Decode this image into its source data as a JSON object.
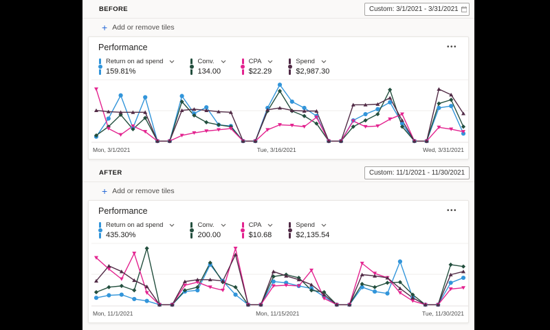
{
  "colors": {
    "roas_blue": "#3295da",
    "conv_green": "#234f3e",
    "cpa_pink": "#e3238f",
    "spend_plum": "#512b46",
    "accent_link": "#2a6bd7"
  },
  "sections": [
    {
      "label": "BEFORE",
      "date_range": "Custom: 3/1/2021 - 3/31/2021",
      "add_tiles_label": "Add or remove tiles",
      "card": {
        "title": "Performance",
        "more_label": "•••",
        "metrics": [
          {
            "label": "Return on ad spend",
            "value": "159.81%",
            "color": "#3295da"
          },
          {
            "label": "Conv.",
            "value": "134.00",
            "color": "#234f3e"
          },
          {
            "label": "CPA",
            "value": "$22.29",
            "color": "#e3238f"
          },
          {
            "label": "Spend",
            "value": "$2,987.30",
            "color": "#512b46"
          }
        ],
        "x_labels": [
          "Mon, 3/1/2021",
          "Tue, 3/16/2021",
          "Wed, 3/31/2021"
        ]
      }
    },
    {
      "label": "AFTER",
      "date_range": "Custom: 11/1/2021 - 11/30/2021",
      "add_tiles_label": "Add or remove tiles",
      "card": {
        "title": "Performance",
        "more_label": "•••",
        "metrics": [
          {
            "label": "Return on ad spend",
            "value": "435.30%",
            "color": "#3295da"
          },
          {
            "label": "Conv.",
            "value": "200.00",
            "color": "#234f3e"
          },
          {
            "label": "CPA",
            "value": "$10.68",
            "color": "#e3238f"
          },
          {
            "label": "Spend",
            "value": "$2,135.54",
            "color": "#512b46"
          }
        ],
        "x_labels": [
          "Mon, 11/1/2021",
          "Mon, 11/15/2021",
          "Tue, 11/30/2021"
        ]
      }
    }
  ],
  "chart_data": [
    {
      "type": "line",
      "title": "Performance (Before)",
      "date_range": "3/1/2021 - 3/31/2021",
      "x_tick_labels": [
        "Mon, 3/1/2021",
        "Tue, 3/16/2021",
        "Wed, 3/31/2021"
      ],
      "x_points": 31,
      "y_unit": "normalized 0-100 (no y-axis shown)",
      "ylim": [
        0,
        100
      ],
      "gridlines": "3 faint horizontal lines (top, middle, bottom)",
      "legend_position": "metric tiles above chart",
      "series": [
        {
          "name": "Return on ad spend",
          "color": "#3295da",
          "marker": "circle",
          "values": [
            9,
            38,
            75,
            23,
            72,
            2,
            2,
            74,
            46,
            56,
            28,
            26,
            2,
            2,
            55,
            92,
            65,
            55,
            42,
            2,
            2,
            35,
            45,
            53,
            64,
            30,
            2,
            2,
            55,
            58,
            14
          ]
        },
        {
          "name": "Conv.",
          "color": "#234f3e",
          "marker": "diamond",
          "values": [
            11,
            25,
            44,
            21,
            39,
            2,
            2,
            65,
            43,
            32,
            28,
            25,
            2,
            2,
            50,
            82,
            50,
            42,
            30,
            2,
            2,
            25,
            35,
            45,
            84,
            25,
            2,
            2,
            62,
            68,
            25
          ]
        },
        {
          "name": "CPA",
          "color": "#e3238f",
          "marker": "triangle-down",
          "values": [
            85,
            22,
            12,
            26,
            17,
            2,
            2,
            11,
            15,
            18,
            20,
            22,
            2,
            2,
            20,
            28,
            27,
            25,
            40,
            2,
            2,
            34,
            25,
            26,
            37,
            45,
            2,
            2,
            24,
            21,
            17
          ]
        },
        {
          "name": "Spend",
          "color": "#512b46",
          "marker": "triangle-up",
          "values": [
            51,
            49,
            48,
            48,
            48,
            2,
            2,
            51,
            53,
            51,
            49,
            48,
            2,
            2,
            52,
            55,
            51,
            50,
            50,
            2,
            2,
            60,
            60,
            61,
            71,
            35,
            2,
            2,
            85,
            76,
            46
          ]
        }
      ]
    },
    {
      "type": "line",
      "title": "Performance (After)",
      "date_range": "11/1/2021 - 11/30/2021",
      "x_tick_labels": [
        "Mon, 11/1/2021",
        "Mon, 11/15/2021",
        "Tue, 11/30/2021"
      ],
      "x_points": 30,
      "y_unit": "normalized 0-100 (no y-axis shown)",
      "ylim": [
        0,
        100
      ],
      "gridlines": "3 faint horizontal lines (top, middle, bottom)",
      "legend_position": "metric tiles above chart",
      "series": [
        {
          "name": "Return on ad spend",
          "color": "#3295da",
          "marker": "circle",
          "values": [
            13,
            17,
            18,
            11,
            8,
            2,
            2,
            23,
            25,
            66,
            40,
            18,
            2,
            2,
            39,
            37,
            32,
            28,
            15,
            2,
            2,
            30,
            23,
            20,
            71,
            13,
            2,
            2,
            37,
            45
          ]
        },
        {
          "name": "Conv.",
          "color": "#234f3e",
          "marker": "diamond",
          "values": [
            22,
            30,
            32,
            25,
            92,
            2,
            2,
            25,
            30,
            69,
            38,
            30,
            2,
            2,
            47,
            50,
            45,
            25,
            22,
            2,
            2,
            35,
            30,
            37,
            38,
            18,
            2,
            2,
            66,
            63
          ]
        },
        {
          "name": "CPA",
          "color": "#e3238f",
          "marker": "triangle-down",
          "values": [
            77,
            59,
            43,
            84,
            21,
            2,
            2,
            33,
            38,
            30,
            25,
            92,
            2,
            2,
            32,
            33,
            32,
            57,
            12,
            2,
            2,
            68,
            52,
            45,
            21,
            8,
            2,
            2,
            27,
            29
          ]
        },
        {
          "name": "Spend",
          "color": "#512b46",
          "marker": "triangle-up",
          "values": [
            40,
            64,
            55,
            41,
            31,
            2,
            2,
            39,
            42,
            42,
            40,
            82,
            2,
            2,
            55,
            48,
            42,
            34,
            18,
            2,
            2,
            50,
            48,
            45,
            28,
            13,
            2,
            2,
            50,
            55
          ]
        }
      ]
    }
  ]
}
